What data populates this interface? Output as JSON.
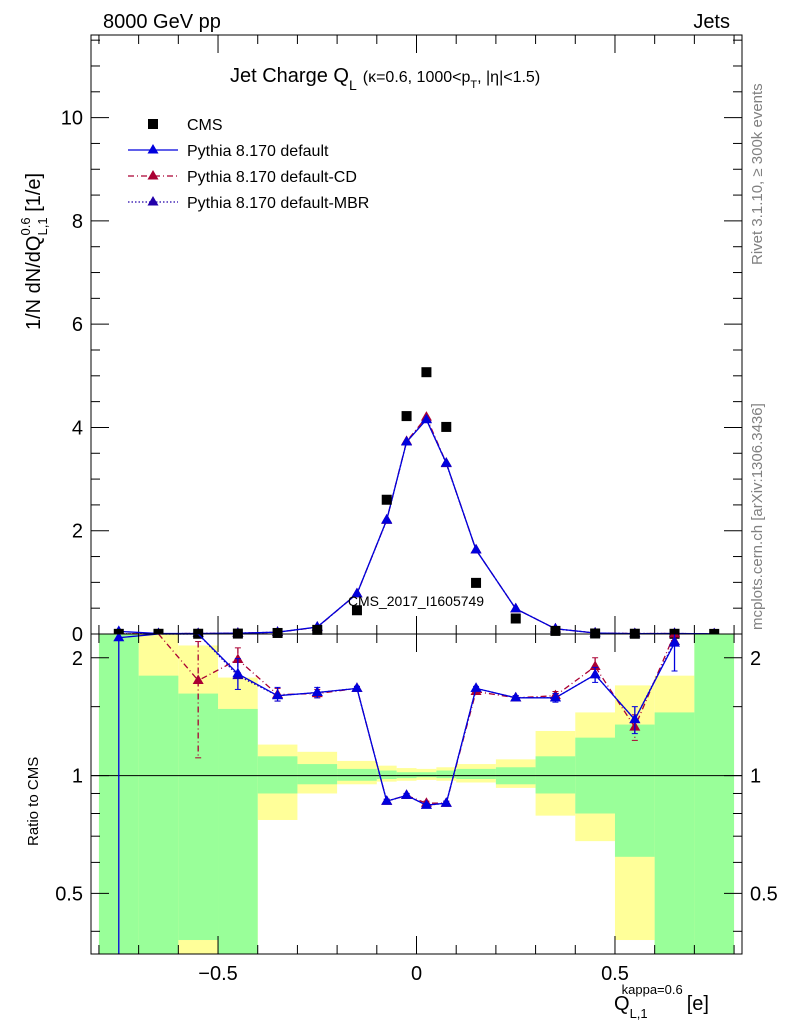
{
  "header": {
    "energy_label": "8000 GeV pp",
    "category_label": "Jets",
    "side_note_rivet": "Rivet 3.1.10, ≥ 300k events",
    "side_note_mcplots": "mcplots.cern.ch [arXiv:1306.3436]",
    "watermark": "CMS_2017_I1605749"
  },
  "chart_data": [
    {
      "type": "scatter",
      "panel": "main",
      "title": "Jet Charge Q_L (κ=0.6, 1000<p_T, |η|<1.5)",
      "title_main": "Jet Charge Q",
      "title_sub": "L",
      "title_detail": "(κ=0.6, 1000<p",
      "title_detail_sub": "T",
      "title_detail_end": ", |η|<1.5)",
      "ylabel": "1/N dN/dQ_L,1^0.6 [1/e]",
      "ylim": [
        0,
        11.6
      ],
      "xlim": [
        -0.82,
        0.82
      ],
      "yticks": [
        0,
        2,
        4,
        6,
        8,
        10
      ],
      "legend_position": "top-left",
      "x": [
        -0.75,
        -0.65,
        -0.55,
        -0.45,
        -0.35,
        -0.25,
        -0.15,
        -0.075,
        -0.025,
        0.025,
        0.075,
        0.15,
        0.25,
        0.35,
        0.45,
        0.55,
        0.65,
        0.75
      ],
      "series": [
        {
          "name": "CMS",
          "style": "markers",
          "color": "#000000",
          "values": [
            0.003,
            0.004,
            0.005,
            0.008,
            0.02,
            0.08,
            0.46,
            2.6,
            4.22,
            5.07,
            4.01,
            0.99,
            0.3,
            0.06,
            0.01,
            0.005,
            0.004,
            0.002
          ]
        },
        {
          "name": "Pythia 8.170 default",
          "style": "solid",
          "color": "#0000dd",
          "values": [
            0.05,
            0.01,
            0.01,
            0.015,
            0.035,
            0.135,
            0.78,
            2.21,
            3.72,
            4.15,
            3.31,
            1.63,
            0.49,
            0.1,
            0.02,
            0.007,
            0.009,
            0.004
          ]
        },
        {
          "name": "Pythia 8.170 default-CD",
          "style": "dashdot",
          "color": "#aa0033",
          "values": [
            0.004,
            0.006,
            0.009,
            0.016,
            0.033,
            0.13,
            0.78,
            2.21,
            3.73,
            4.2,
            3.31,
            1.63,
            0.49,
            0.1,
            0.019,
            0.007,
            0.009,
            0.004
          ]
        },
        {
          "name": "Pythia 8.170 default-MBR",
          "style": "dotted",
          "color": "#2200aa",
          "values": [
            0.004,
            0.006,
            0.009,
            0.016,
            0.034,
            0.133,
            0.78,
            2.2,
            3.72,
            4.16,
            3.3,
            1.63,
            0.49,
            0.1,
            0.019,
            0.007,
            0.009,
            0.004
          ]
        }
      ]
    },
    {
      "type": "line",
      "panel": "ratio",
      "ylabel": "Ratio to CMS",
      "xlabel": "Q_L,1^kappa=0.6 [e]",
      "xlabel_main": "Q",
      "xlabel_sub": "L,1",
      "xlabel_sup": "kappa=0.6",
      "xlabel_unit": "[e]",
      "y_scale": "log",
      "ylim": [
        0.35,
        2.3
      ],
      "xlim": [
        -0.82,
        0.82
      ],
      "yticks": [
        0.5,
        1,
        2
      ],
      "ytick_labels": [
        "0.5",
        "1",
        "2"
      ],
      "xticks": [
        -0.5,
        0,
        0.5
      ],
      "xtick_labels": [
        "−0.5",
        "0",
        "0.5"
      ],
      "reference_line": 1,
      "x": [
        -0.75,
        -0.65,
        -0.55,
        -0.45,
        -0.35,
        -0.25,
        -0.15,
        -0.075,
        -0.025,
        0.025,
        0.075,
        0.15,
        0.25,
        0.35,
        0.45,
        0.55,
        0.65,
        0.75
      ],
      "bin_edges": [
        -0.8,
        -0.7,
        -0.6,
        -0.5,
        -0.4,
        -0.3,
        -0.2,
        -0.1,
        -0.05,
        0,
        0.05,
        0.1,
        0.2,
        0.3,
        0.4,
        0.5,
        0.6,
        0.7,
        0.8
      ],
      "uncertainty_bands": [
        {
          "name": "stat",
          "color": "#99ff99",
          "low": [
            0.35,
            0.35,
            0.38,
            0.35,
            0.9,
            0.95,
            0.97,
            0.98,
            0.985,
            0.99,
            0.985,
            0.98,
            0.95,
            0.9,
            0.8,
            0.62,
            0.35,
            0.35
          ],
          "high": [
            2.3,
            1.8,
            1.62,
            1.48,
            1.12,
            1.07,
            1.04,
            1.03,
            1.02,
            1.02,
            1.03,
            1.04,
            1.05,
            1.12,
            1.25,
            1.35,
            1.45,
            2.3
          ]
        },
        {
          "name": "syst",
          "color": "#ffff99",
          "low": [
            0.35,
            0.35,
            0.35,
            0.35,
            0.77,
            0.9,
            0.95,
            0.965,
            0.97,
            0.975,
            0.97,
            0.96,
            0.93,
            0.79,
            0.68,
            0.38,
            0.35,
            0.35
          ],
          "high": [
            2.3,
            2.3,
            2.15,
            1.78,
            1.2,
            1.15,
            1.09,
            1.06,
            1.045,
            1.04,
            1.05,
            1.07,
            1.1,
            1.3,
            1.45,
            1.7,
            1.8,
            2.3
          ]
        }
      ],
      "series": [
        {
          "name": "Pythia 8.170 default",
          "style": "solid",
          "color": "#0000dd",
          "values": [
            2.25,
            2.5,
            2.5,
            1.82,
            1.6,
            1.63,
            1.67,
            0.86,
            0.89,
            0.84,
            0.85,
            1.67,
            1.58,
            1.58,
            1.81,
            1.39,
            2.18,
            null
          ],
          "err_low": [
            1.95,
            0,
            0,
            0.16,
            0.05,
            0.05,
            0.02,
            0.01,
            0.01,
            0.01,
            0.01,
            0.02,
            0.02,
            0.04,
            0.08,
            0.11,
            0.33,
            0
          ],
          "err_high": [
            0,
            0,
            0,
            0.17,
            0.08,
            0.05,
            0.02,
            0.01,
            0.01,
            0.01,
            0.01,
            0.02,
            0.02,
            0.04,
            0.08,
            0.11,
            0.3,
            0
          ]
        },
        {
          "name": "Pythia 8.170 default-CD",
          "style": "dashdot",
          "color": "#aa0033",
          "values": [
            null,
            2.5,
            1.75,
            1.98,
            1.61,
            1.62,
            1.67,
            0.86,
            0.89,
            0.85,
            0.85,
            1.64,
            1.58,
            1.6,
            1.9,
            1.33,
            2.3,
            null
          ],
          "err_low": [
            0,
            0,
            0.64,
            0.15,
            0.06,
            0.04,
            0.02,
            0.01,
            0.01,
            0.01,
            0.01,
            0.02,
            0.02,
            0.04,
            0.1,
            0.1,
            0,
            0
          ],
          "err_high": [
            0,
            0,
            0.45,
            0.14,
            0.06,
            0.04,
            0.02,
            0.01,
            0.01,
            0.01,
            0.01,
            0.02,
            0.02,
            0.04,
            0.1,
            0.1,
            0,
            0
          ]
        },
        {
          "name": "Pythia 8.170 default-MBR",
          "style": "dotted",
          "color": "#2200aa",
          "values": [
            null,
            2.5,
            2.5,
            1.8,
            1.6,
            1.63,
            1.67,
            0.86,
            0.89,
            0.84,
            0.85,
            1.67,
            1.58,
            1.58,
            1.81,
            1.39,
            2.2,
            null
          ],
          "err_low": [
            0,
            0,
            0,
            0,
            0,
            0,
            0,
            0,
            0,
            0,
            0,
            0,
            0,
            0,
            0,
            0,
            0,
            0
          ],
          "err_high": [
            0,
            0,
            0,
            0,
            0,
            0,
            0,
            0,
            0,
            0,
            0,
            0,
            0,
            0,
            0,
            0,
            0,
            0
          ]
        }
      ]
    }
  ]
}
